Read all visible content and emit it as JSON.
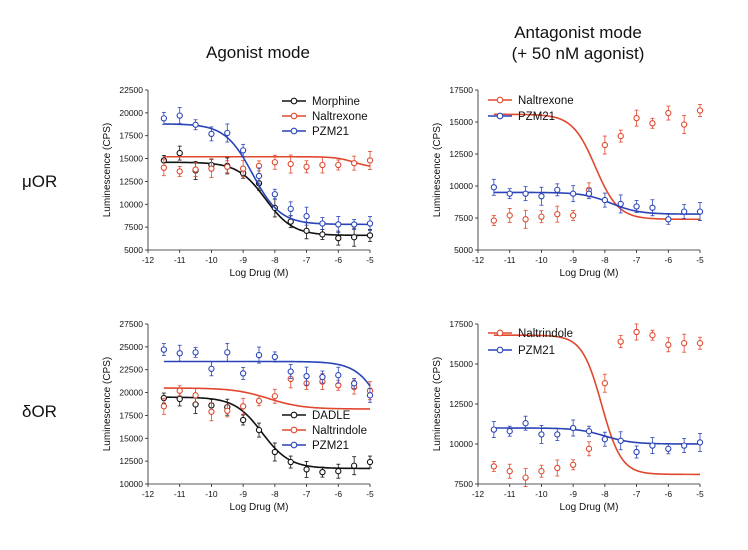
{
  "column_titles": [
    {
      "line1": "Agonist mode",
      "line2": ""
    },
    {
      "line1": "Antagonist mode",
      "line2": "(+ 50 nM agonist)"
    }
  ],
  "row_labels": [
    "μOR",
    "δOR"
  ],
  "colors": {
    "black": "#111111",
    "red": "#e0482e",
    "blue": "#2a44b8"
  },
  "chart_data": [
    {
      "type": "scatter",
      "xlabel": "Log Drug (M)",
      "ylabel": "Luminescence (CPS)",
      "xlim": [
        -12,
        -5
      ],
      "ylim": [
        5000,
        22500
      ],
      "xticks": [
        -12,
        -11,
        -10,
        -9,
        -8,
        -7,
        -6,
        -5
      ],
      "yticks": [
        5000,
        7500,
        10000,
        12500,
        15000,
        17500,
        20000,
        22500
      ],
      "legend": "top-right",
      "series": [
        {
          "name": "Morphine",
          "color": "black",
          "x": [
            -11.5,
            -11,
            -10.5,
            -10,
            -9.5,
            -9,
            -8.5,
            -8,
            -7.5,
            -7,
            -6.5,
            -6,
            -5.5,
            -5
          ],
          "y": [
            14800,
            15600,
            13700,
            14300,
            14200,
            13400,
            12300,
            9600,
            8100,
            7100,
            6700,
            6300,
            6400,
            6600
          ],
          "curve": {
            "bottom": 6600,
            "top": 14600,
            "logEC50": -8.3,
            "hill": 1.0
          }
        },
        {
          "name": "Naltrexone",
          "color": "red",
          "x": [
            -11.5,
            -11,
            -10.5,
            -10,
            -9.5,
            -9,
            -8.5,
            -8,
            -7.5,
            -7,
            -6.5,
            -6,
            -5.5,
            -5
          ],
          "y": [
            14000,
            13600,
            13800,
            13900,
            14100,
            13900,
            14200,
            14600,
            14400,
            14100,
            14300,
            14300,
            14500,
            14800
          ],
          "curve": {
            "bottom": 14000,
            "top": 15200,
            "logEC50": -5.5,
            "hill": 1.5
          }
        },
        {
          "name": "PZM21",
          "color": "blue",
          "x": [
            -11.5,
            -11,
            -10.5,
            -10,
            -9.5,
            -9,
            -8.5,
            -8,
            -7.5,
            -7,
            -6.5,
            -6,
            -5.5,
            -5
          ],
          "y": [
            19400,
            19700,
            18700,
            17700,
            17800,
            15900,
            13100,
            11100,
            9500,
            8700,
            7900,
            7800,
            7800,
            7900
          ],
          "curve": {
            "bottom": 7800,
            "top": 18800,
            "logEC50": -8.7,
            "hill": 1.0
          }
        }
      ]
    },
    {
      "type": "scatter",
      "xlabel": "Log Drug (M)",
      "ylabel": "Luminescence (CPS)",
      "xlim": [
        -12,
        -5
      ],
      "ylim": [
        5000,
        17500
      ],
      "xticks": [
        -12,
        -11,
        -10,
        -9,
        -8,
        -7,
        -6,
        -5
      ],
      "yticks": [
        5000,
        7500,
        10000,
        12500,
        15000,
        17500
      ],
      "legend": "top-left",
      "series": [
        {
          "name": "Naltrexone",
          "color": "red",
          "x": [
            -11.5,
            -11,
            -10.5,
            -10,
            -9.5,
            -9,
            -8.5,
            -8,
            -7.5,
            -7,
            -6.5,
            -6,
            -5.5,
            -5
          ],
          "y": [
            7300,
            7700,
            7400,
            7600,
            7800,
            7700,
            9700,
            13200,
            13900,
            15300,
            14900,
            15700,
            14800,
            15900
          ],
          "curve": {
            "bottom": 7400,
            "top": 15600,
            "logEC50": -8.3,
            "hill": 1.2
          }
        },
        {
          "name": "PZM21",
          "color": "blue",
          "x": [
            -11.5,
            -11,
            -10.5,
            -10,
            -9.5,
            -9,
            -8.5,
            -8,
            -7.5,
            -7,
            -6.5,
            -6,
            -5.5,
            -5
          ],
          "y": [
            9900,
            9400,
            9400,
            9200,
            9700,
            9400,
            9400,
            8900,
            8600,
            8400,
            8300,
            7400,
            8000,
            8000
          ],
          "curve": {
            "bottom": 7800,
            "top": 9500,
            "logEC50": -7.8,
            "hill": 1.0
          }
        }
      ]
    },
    {
      "type": "scatter",
      "xlabel": "Log Drug (M)",
      "ylabel": "Luminescence (CPS)",
      "xlim": [
        -12,
        -5
      ],
      "ylim": [
        10000,
        27500
      ],
      "xticks": [
        -12,
        -11,
        -10,
        -9,
        -8,
        -7,
        -6,
        -5
      ],
      "yticks": [
        10000,
        12500,
        15000,
        17500,
        20000,
        22500,
        25000,
        27500
      ],
      "legend": "bottom-right",
      "series": [
        {
          "name": "DADLE",
          "color": "black",
          "x": [
            -11.5,
            -11,
            -10.5,
            -10,
            -9.5,
            -9,
            -8.5,
            -8,
            -7.5,
            -7,
            -6.5,
            -6,
            -5.5,
            -5
          ],
          "y": [
            19400,
            19300,
            18700,
            18600,
            18400,
            17000,
            15900,
            13500,
            12400,
            11600,
            11300,
            11400,
            12000,
            12400
          ],
          "curve": {
            "bottom": 11700,
            "top": 19500,
            "logEC50": -8.4,
            "hill": 1.0
          }
        },
        {
          "name": "Naltrindole",
          "color": "red",
          "x": [
            -11.5,
            -11,
            -10.5,
            -10,
            -9.5,
            -9,
            -8.5,
            -8,
            -7.5,
            -7,
            -6.5,
            -6,
            -5.5,
            -5
          ],
          "y": [
            18500,
            20200,
            19700,
            17900,
            18000,
            18500,
            19100,
            19600,
            21500,
            21000,
            21200,
            20800,
            20600,
            20200
          ],
          "curve": {
            "bottom": 18200,
            "top": 20500,
            "logEC50": -8.2,
            "hill": 0.8
          }
        },
        {
          "name": "PZM21",
          "color": "blue",
          "x": [
            -11.5,
            -11,
            -10.5,
            -10,
            -9.5,
            -9,
            -8.5,
            -8,
            -7.5,
            -7,
            -6.5,
            -6,
            -5.5,
            -5
          ],
          "y": [
            24700,
            24300,
            24400,
            22600,
            24400,
            22100,
            24100,
            23900,
            22300,
            21800,
            21700,
            21900,
            21000,
            19700
          ],
          "curve": {
            "bottom": 10000,
            "top": 23400,
            "logEC50": -4.4,
            "hill": 1.0
          }
        }
      ]
    },
    {
      "type": "scatter",
      "xlabel": "Log Drug (M)",
      "ylabel": "Luminescence (CPS)",
      "xlim": [
        -12,
        -5
      ],
      "ylim": [
        7500,
        17500
      ],
      "xticks": [
        -12,
        -11,
        -10,
        -9,
        -8,
        -7,
        -6,
        -5
      ],
      "yticks": [
        7500,
        10000,
        12500,
        15000,
        17500
      ],
      "legend": "top-left",
      "series": [
        {
          "name": "Naltrindole",
          "color": "red",
          "x": [
            -11.5,
            -11,
            -10.5,
            -10,
            -9.5,
            -9,
            -8.5,
            -8,
            -7.5,
            -7,
            -6.5,
            -6,
            -5.5,
            -5
          ],
          "y": [
            8600,
            8300,
            7900,
            8300,
            8500,
            8700,
            9700,
            13800,
            16400,
            17000,
            16800,
            16200,
            16300,
            16300
          ],
          "curve": {
            "bottom": 8100,
            "top": 16800,
            "logEC50": -8.1,
            "hill": 1.4
          }
        },
        {
          "name": "PZM21",
          "color": "blue",
          "x": [
            -11.5,
            -11,
            -10.5,
            -10,
            -9.5,
            -9,
            -8.5,
            -8,
            -7.5,
            -7,
            -6.5,
            -6,
            -5.5,
            -5
          ],
          "y": [
            10900,
            10800,
            11300,
            10600,
            10600,
            11000,
            10800,
            10300,
            10200,
            9500,
            9900,
            9700,
            9900,
            10100
          ],
          "curve": {
            "bottom": 10000,
            "top": 11000,
            "logEC50": -8.0,
            "hill": 1.0
          }
        }
      ]
    }
  ]
}
